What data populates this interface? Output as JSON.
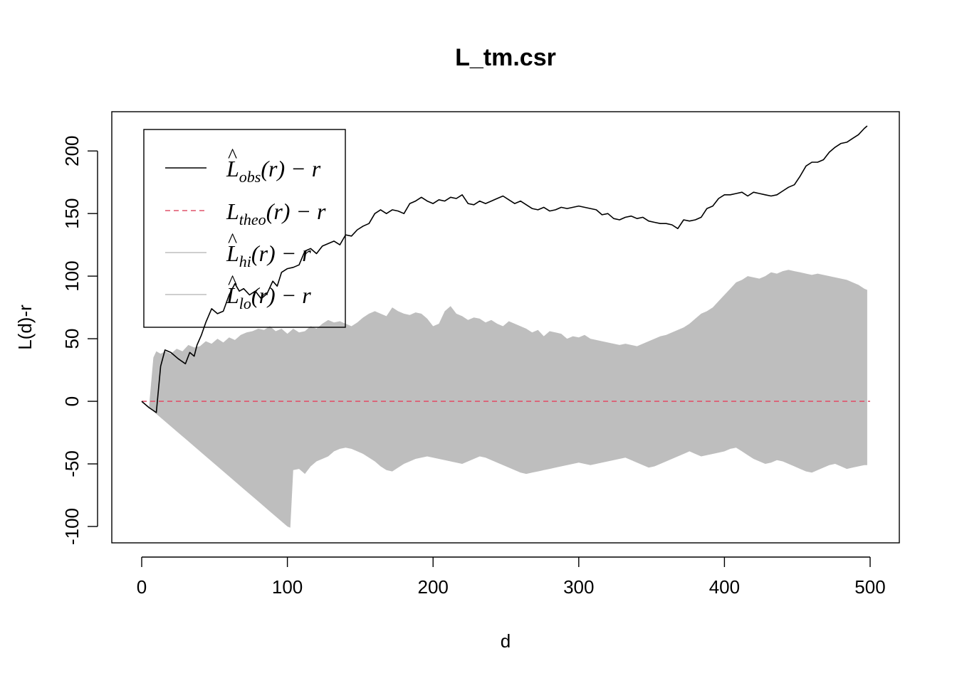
{
  "chart_data": {
    "type": "line",
    "title": "L_tm.csr",
    "xlabel": "d",
    "ylabel": "L(d)-r",
    "xlim": [
      0,
      500
    ],
    "ylim": [
      -100,
      220
    ],
    "xticks": [
      "0",
      "100",
      "200",
      "300",
      "400",
      "500"
    ],
    "yticks": [
      "-100",
      "-50",
      "0",
      "50",
      "100",
      "150",
      "200"
    ],
    "legend_position": "top-left",
    "legend": [
      {
        "main": "L",
        "hat": "^",
        "sub": "obs",
        "tail": "(r) − r"
      },
      {
        "main": "L",
        "hat": "",
        "sub": "theo",
        "tail": "(r) − r"
      },
      {
        "main": "L",
        "hat": "^",
        "sub": "hi",
        "tail": "(r) − r"
      },
      {
        "main": "L",
        "hat": "^",
        "sub": "lo",
        "tail": "(r) − r"
      }
    ],
    "colors": {
      "obs": "#000000",
      "theo": "#DF536B",
      "envelope": "#BEBEBE"
    },
    "series": [
      {
        "key": "obs",
        "style": "solid",
        "x": [
          0,
          5,
          10,
          13,
          16,
          20,
          25,
          30,
          33,
          36,
          38,
          41,
          44,
          48,
          52,
          56,
          60,
          64,
          67,
          70,
          74,
          78,
          82,
          86,
          90,
          93,
          96,
          100,
          104,
          108,
          112,
          116,
          120,
          124,
          128,
          132,
          136,
          140,
          144,
          148,
          152,
          156,
          160,
          164,
          168,
          172,
          176,
          180,
          184,
          188,
          192,
          196,
          200,
          204,
          208,
          212,
          216,
          220,
          224,
          228,
          232,
          236,
          240,
          244,
          248,
          252,
          256,
          260,
          264,
          268,
          272,
          276,
          280,
          284,
          288,
          292,
          296,
          300,
          304,
          308,
          312,
          316,
          320,
          324,
          328,
          332,
          336,
          340,
          344,
          348,
          352,
          356,
          360,
          364,
          368,
          372,
          376,
          380,
          384,
          388,
          392,
          396,
          400,
          404,
          408,
          412,
          416,
          420,
          424,
          428,
          432,
          436,
          440,
          444,
          448,
          452,
          456,
          460,
          464,
          468,
          472,
          476,
          480,
          484,
          488,
          492,
          496,
          498
        ],
        "values": [
          0,
          -5,
          -9,
          28,
          41,
          39,
          34,
          30,
          39,
          36,
          45,
          53,
          63,
          74,
          70,
          72,
          85,
          94,
          88,
          90,
          85,
          88,
          82,
          86,
          96,
          92,
          103,
          106,
          107,
          109,
          120,
          122,
          118,
          124,
          126,
          128,
          125,
          133,
          132,
          137,
          140,
          142,
          150,
          153,
          150,
          153,
          152,
          150,
          158,
          160,
          163,
          160,
          158,
          161,
          160,
          163,
          162,
          165,
          158,
          157,
          160,
          158,
          160,
          162,
          164,
          161,
          158,
          160,
          157,
          154,
          153,
          155,
          152,
          153,
          155,
          154,
          155,
          156,
          155,
          154,
          153,
          149,
          150,
          146,
          145,
          147,
          148,
          146,
          147,
          144,
          143,
          142,
          142,
          141,
          138,
          145,
          144,
          145,
          147,
          154,
          156,
          162,
          165,
          165,
          166,
          167,
          164,
          167,
          166,
          165,
          164,
          165,
          168,
          171,
          173,
          180,
          188,
          191,
          191,
          193,
          199,
          203,
          206,
          207,
          210,
          213,
          218,
          220
        ]
      },
      {
        "key": "theo",
        "style": "dashed",
        "x": [
          0,
          500
        ],
        "values": [
          0,
          0
        ]
      },
      {
        "key": "hi",
        "style": "band-upper",
        "x": [
          0,
          5,
          8,
          10,
          13,
          16,
          20,
          24,
          28,
          32,
          36,
          40,
          44,
          48,
          52,
          56,
          60,
          64,
          68,
          72,
          76,
          80,
          84,
          88,
          92,
          96,
          100,
          104,
          108,
          112,
          116,
          120,
          124,
          128,
          132,
          136,
          140,
          144,
          148,
          152,
          156,
          160,
          164,
          168,
          172,
          176,
          180,
          184,
          188,
          192,
          196,
          200,
          204,
          208,
          212,
          216,
          220,
          224,
          228,
          232,
          236,
          240,
          244,
          248,
          252,
          256,
          260,
          264,
          268,
          272,
          276,
          280,
          284,
          288,
          292,
          296,
          300,
          304,
          308,
          312,
          316,
          320,
          324,
          328,
          332,
          336,
          340,
          344,
          348,
          352,
          356,
          360,
          364,
          368,
          372,
          376,
          380,
          384,
          388,
          392,
          396,
          400,
          404,
          408,
          412,
          416,
          420,
          424,
          428,
          432,
          436,
          440,
          444,
          448,
          452,
          456,
          460,
          464,
          468,
          472,
          476,
          480,
          484,
          488,
          492,
          496,
          498
        ],
        "values": [
          0,
          -5,
          35,
          40,
          38,
          40,
          38,
          42,
          40,
          45,
          43,
          44,
          48,
          46,
          50,
          47,
          51,
          49,
          53,
          55,
          56,
          58,
          57,
          60,
          56,
          58,
          54,
          58,
          55,
          56,
          60,
          58,
          62,
          65,
          63,
          64,
          62,
          60,
          63,
          67,
          70,
          72,
          70,
          68,
          75,
          72,
          70,
          69,
          71,
          70,
          66,
          60,
          62,
          72,
          76,
          70,
          68,
          65,
          67,
          66,
          63,
          65,
          62,
          60,
          64,
          62,
          60,
          58,
          55,
          57,
          52,
          56,
          55,
          54,
          50,
          52,
          51,
          53,
          50,
          49,
          48,
          47,
          46,
          45,
          46,
          45,
          44,
          46,
          48,
          50,
          52,
          53,
          55,
          57,
          59,
          62,
          66,
          70,
          72,
          75,
          80,
          85,
          90,
          95,
          97,
          100,
          99,
          98,
          100,
          103,
          102,
          104,
          105,
          104,
          103,
          102,
          101,
          102,
          101,
          100,
          99,
          98,
          97,
          95,
          93,
          90,
          89
        ]
      },
      {
        "key": "lo",
        "style": "band-lower",
        "x": [
          0,
          5,
          10,
          20,
          30,
          40,
          50,
          60,
          70,
          80,
          90,
          100,
          102,
          104,
          108,
          112,
          116,
          120,
          124,
          128,
          132,
          136,
          140,
          144,
          148,
          152,
          156,
          160,
          164,
          168,
          172,
          176,
          180,
          184,
          188,
          192,
          196,
          200,
          204,
          208,
          212,
          216,
          220,
          224,
          228,
          232,
          236,
          240,
          244,
          248,
          252,
          256,
          260,
          264,
          268,
          272,
          276,
          280,
          284,
          288,
          292,
          296,
          300,
          304,
          308,
          312,
          316,
          320,
          324,
          328,
          332,
          336,
          340,
          344,
          348,
          352,
          356,
          360,
          364,
          368,
          372,
          376,
          380,
          384,
          388,
          392,
          396,
          400,
          404,
          408,
          412,
          416,
          420,
          424,
          428,
          432,
          436,
          440,
          444,
          448,
          452,
          456,
          460,
          464,
          468,
          472,
          476,
          480,
          484,
          488,
          492,
          496,
          498
        ],
        "values": [
          0,
          -5,
          -10,
          -20,
          -30,
          -40,
          -50,
          -60,
          -70,
          -80,
          -90,
          -100,
          -101,
          -55,
          -54,
          -58,
          -52,
          -48,
          -46,
          -44,
          -40,
          -38,
          -37,
          -38,
          -40,
          -42,
          -45,
          -48,
          -52,
          -55,
          -56,
          -53,
          -50,
          -48,
          -46,
          -45,
          -44,
          -45,
          -46,
          -47,
          -48,
          -49,
          -50,
          -48,
          -46,
          -44,
          -45,
          -47,
          -49,
          -51,
          -53,
          -55,
          -57,
          -58,
          -57,
          -56,
          -55,
          -54,
          -53,
          -52,
          -51,
          -50,
          -49,
          -50,
          -51,
          -50,
          -49,
          -48,
          -47,
          -46,
          -45,
          -47,
          -49,
          -51,
          -53,
          -52,
          -50,
          -48,
          -46,
          -44,
          -42,
          -40,
          -42,
          -44,
          -43,
          -42,
          -41,
          -40,
          -38,
          -37,
          -40,
          -43,
          -46,
          -48,
          -50,
          -49,
          -47,
          -48,
          -50,
          -52,
          -54,
          -56,
          -57,
          -55,
          -53,
          -51,
          -50,
          -52,
          -54,
          -53,
          -52,
          -51,
          -51
        ]
      }
    ]
  }
}
